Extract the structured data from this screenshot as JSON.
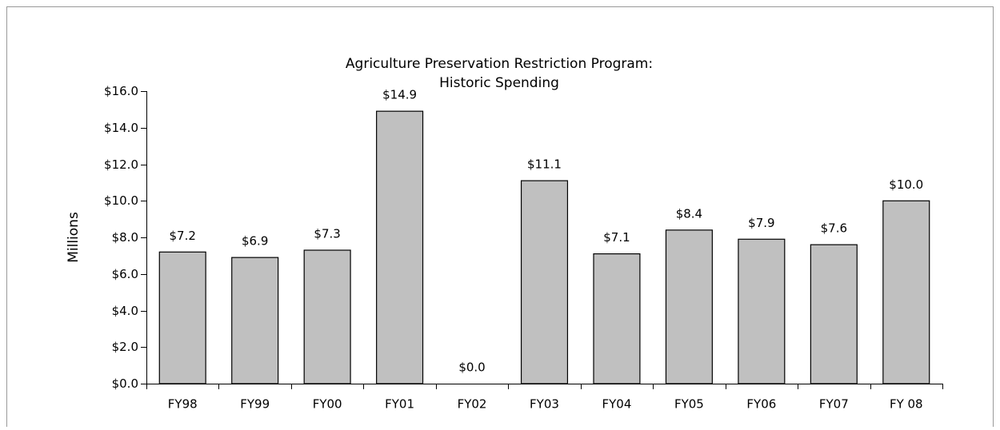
{
  "chart_data": {
    "type": "bar",
    "title": [
      "Agriculture Preservation Restriction Program:",
      "Historic Spending"
    ],
    "y_label": "Millions",
    "categories": [
      "FY98",
      "FY99",
      "FY00",
      "FY01",
      "FY02",
      "FY03",
      "FY04",
      "FY05",
      "FY06",
      "FY07",
      "FY 08"
    ],
    "values": [
      7.2,
      6.9,
      7.3,
      14.9,
      0.0,
      11.1,
      7.1,
      8.4,
      7.9,
      7.6,
      10.0
    ],
    "value_labels": [
      "$7.2",
      "$6.9",
      "$7.3",
      "$14.9",
      "$0.0",
      "$11.1",
      "$7.1",
      "$8.4",
      "$7.9",
      "$7.6",
      "$10.0"
    ],
    "color": "#c0c0c0",
    "ylim": [
      0,
      16
    ],
    "yticks": [
      {
        "value": 0,
        "label": "$0.0"
      },
      {
        "value": 2,
        "label": "$2.0"
      },
      {
        "value": 4,
        "label": "$4.0"
      },
      {
        "value": 6,
        "label": "$6.0"
      },
      {
        "value": 8,
        "label": "$8.0"
      },
      {
        "value": 10,
        "label": "$10.0"
      },
      {
        "value": 12,
        "label": "$12.0"
      },
      {
        "value": 14,
        "label": "$14.0"
      },
      {
        "value": 16,
        "label": "$16.0"
      }
    ],
    "grid": false
  }
}
